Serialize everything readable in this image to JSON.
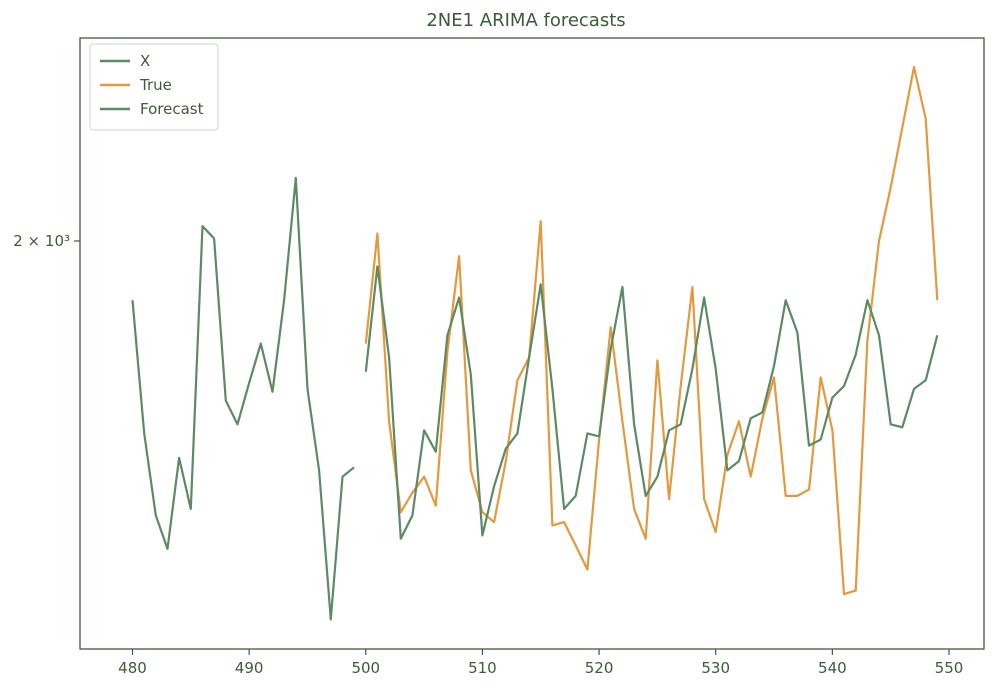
{
  "chart_data": {
    "type": "line",
    "title": "2NE1 ARIMA forecasts",
    "xlabel": "",
    "ylabel": "",
    "y_scale": "log",
    "xlim": [
      475.5,
      553
    ],
    "ylim": [
      1330,
      2450
    ],
    "grid": false,
    "legend_position": "top-left",
    "x_ticks": [
      480,
      490,
      500,
      510,
      520,
      530,
      540,
      550
    ],
    "x_tick_labels": [
      "480",
      "490",
      "500",
      "510",
      "520",
      "530",
      "540",
      "550"
    ],
    "y_ticks": [
      {
        "value": 2000,
        "label": "2 × 10³"
      }
    ],
    "series": [
      {
        "name": "X",
        "color": "#5b8a63",
        "x": [
          480,
          481,
          482,
          483,
          484,
          485,
          486,
          487,
          488,
          489,
          490,
          491,
          492,
          493,
          494,
          495,
          496,
          497,
          498,
          499
        ],
        "y": [
          1885,
          1650,
          1520,
          1470,
          1610,
          1530,
          2030,
          2005,
          1705,
          1665,
          1735,
          1805,
          1720,
          1885,
          2130,
          1725,
          1590,
          1370,
          1580,
          1595
        ]
      },
      {
        "name": "True",
        "color": "#e39a3e",
        "x": [
          500,
          501,
          502,
          503,
          504,
          505,
          506,
          507,
          508,
          509,
          510,
          511,
          512,
          513,
          514,
          515,
          516,
          517,
          518,
          519,
          520,
          521,
          522,
          523,
          524,
          525,
          526,
          527,
          528,
          529,
          530,
          531,
          532,
          533,
          534,
          535,
          536,
          537,
          538,
          539,
          540,
          541,
          542,
          543,
          544,
          545,
          546,
          547,
          548,
          549
        ],
        "y": [
          1805,
          2015,
          1670,
          1525,
          1555,
          1580,
          1535,
          1790,
          1970,
          1590,
          1525,
          1510,
          1605,
          1740,
          1780,
          2040,
          1505,
          1510,
          1475,
          1440,
          1640,
          1835,
          1670,
          1530,
          1485,
          1775,
          1545,
          1730,
          1910,
          1545,
          1495,
          1615,
          1670,
          1580,
          1675,
          1745,
          1550,
          1550,
          1560,
          1745,
          1655,
          1405,
          1410,
          1810,
          2000,
          2110,
          2240,
          2380,
          2260,
          1885
        ]
      },
      {
        "name": "Forecast",
        "color": "#5b8a63",
        "x": [
          500,
          501,
          502,
          503,
          504,
          505,
          506,
          507,
          508,
          509,
          510,
          511,
          512,
          513,
          514,
          515,
          516,
          517,
          518,
          519,
          520,
          521,
          522,
          523,
          524,
          525,
          526,
          527,
          528,
          529,
          530,
          531,
          532,
          533,
          534,
          535,
          536,
          537,
          538,
          539,
          540,
          541,
          542,
          543,
          544,
          545,
          546,
          547,
          548,
          549
        ],
        "y": [
          1755,
          1950,
          1780,
          1485,
          1520,
          1655,
          1620,
          1820,
          1890,
          1750,
          1490,
          1565,
          1625,
          1650,
          1780,
          1915,
          1725,
          1530,
          1550,
          1650,
          1645,
          1795,
          1910,
          1665,
          1550,
          1580,
          1655,
          1665,
          1760,
          1890,
          1760,
          1590,
          1605,
          1675,
          1685,
          1765,
          1885,
          1825,
          1630,
          1640,
          1710,
          1730,
          1785,
          1885,
          1820,
          1665,
          1660,
          1725,
          1740,
          1820
        ]
      }
    ]
  }
}
